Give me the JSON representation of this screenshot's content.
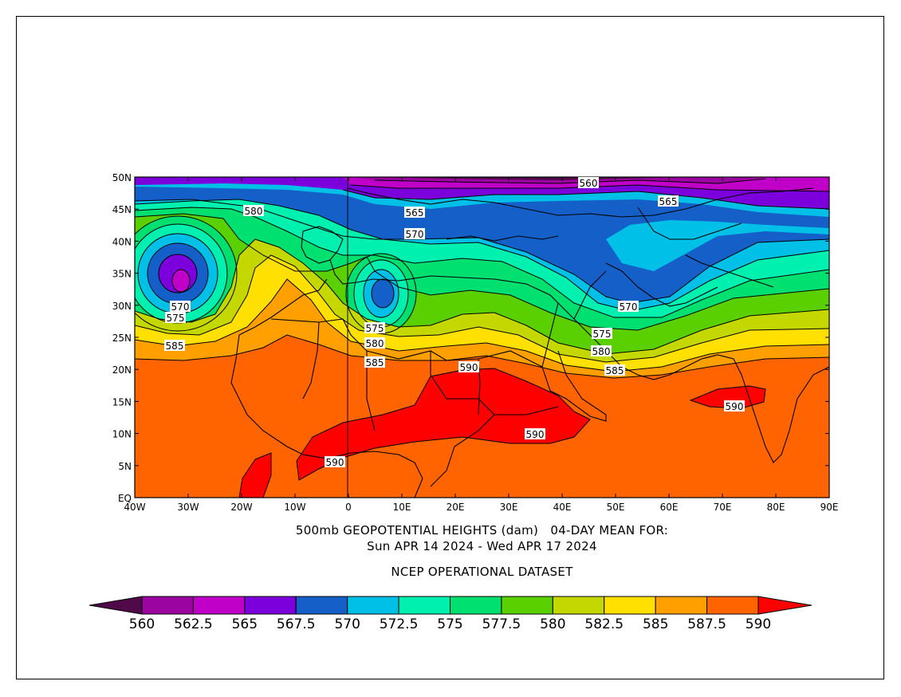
{
  "map": {
    "lat_ticks": [
      "50N",
      "45N",
      "40N",
      "35N",
      "30N",
      "25N",
      "20N",
      "15N",
      "10N",
      "5N",
      "EQ"
    ],
    "lon_ticks": [
      "40W",
      "30W",
      "20W",
      "10W",
      "0",
      "10E",
      "20E",
      "30E",
      "40E",
      "50E",
      "60E",
      "70E",
      "80E",
      "90E"
    ],
    "contour_labels": [
      "560",
      "565",
      "565",
      "570",
      "580",
      "570",
      "575",
      "585",
      "575",
      "580",
      "585",
      "590",
      "570",
      "575",
      "580",
      "585",
      "590",
      "590",
      "590"
    ],
    "colors": {
      "h560": "#500a4a",
      "h562_5": "#9b04a0",
      "h565": "#c000c8",
      "h567_5": "#7b00dc",
      "h570": "#1560c8",
      "h572_5": "#00c0e8",
      "h575": "#00f0b0",
      "h577_5": "#00e070",
      "h580": "#5ad000",
      "h582_5": "#c4d800",
      "h585": "#ffe000",
      "h587_5": "#ffa000",
      "h590": "#ff6400",
      "above590": "#ff0000"
    }
  },
  "captions": {
    "line1": "500mb GEOPOTENTIAL HEIGHTS (dam)   04-DAY MEAN FOR:",
    "line2": "Sun APR 14 2024 - Wed APR 17 2024",
    "line3": "NCEP OPERATIONAL DATASET"
  },
  "colorbar": {
    "labels": [
      "560",
      "562.5",
      "565",
      "567.5",
      "570",
      "572.5",
      "575",
      "577.5",
      "580",
      "582.5",
      "585",
      "587.5",
      "590"
    ],
    "colors": [
      "#500a4a",
      "#9b04a0",
      "#c000c8",
      "#7b00dc",
      "#1560c8",
      "#00c0e8",
      "#00f0b0",
      "#00e070",
      "#5ad000",
      "#c4d800",
      "#ffe000",
      "#ffa000",
      "#ff6400",
      "#ff0000"
    ]
  }
}
